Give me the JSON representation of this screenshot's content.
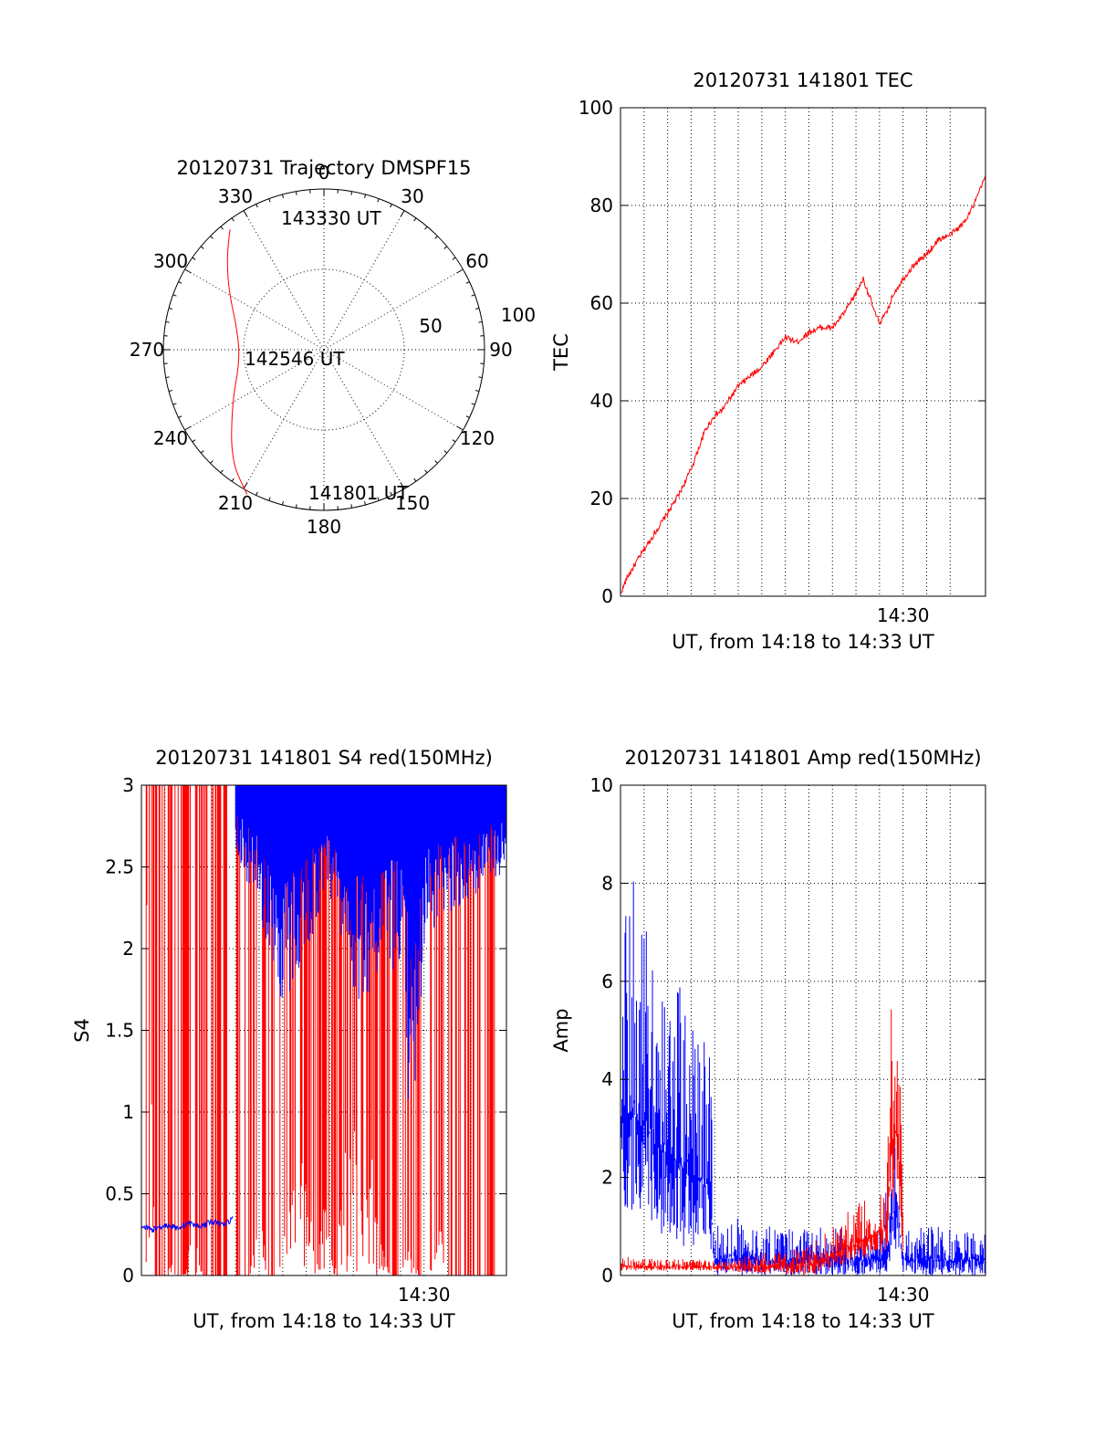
{
  "polar": {
    "title": "20120731 Trajectory DMSPF15",
    "azimuth_labels": [
      "0",
      "30",
      "60",
      "90",
      "120",
      "150",
      "180",
      "210",
      "240",
      "270",
      "300",
      "330"
    ],
    "radius_labels": [
      "50",
      "100"
    ],
    "point_labels": [
      "143330 UT",
      "142546 UT",
      "141801 UT"
    ],
    "trajectory_color": "#ff0000"
  },
  "chart_data": [
    {
      "type": "polar",
      "title": "20120731 Trajectory DMSPF15",
      "series": [
        {
          "color": "#ff0000",
          "points": [
            {
              "az": 208,
              "r": 102
            },
            {
              "az": 220,
              "r": 90
            },
            {
              "az": 240,
              "r": 66
            },
            {
              "az": 262,
              "r": 53
            },
            {
              "az": 282,
              "r": 55
            },
            {
              "az": 302,
              "r": 70
            },
            {
              "az": 314,
              "r": 84
            },
            {
              "az": 322,
              "r": 95
            }
          ]
        }
      ],
      "labels": [
        {
          "text": "143330 UT",
          "az": 326,
          "r": 100
        },
        {
          "text": "142546 UT",
          "az": 265,
          "r": 50
        },
        {
          "text": "141801 UT",
          "az": 208,
          "r": 102
        }
      ],
      "rlim": [
        0,
        100
      ]
    },
    {
      "type": "line",
      "title": "20120731 141801 TEC",
      "xlabel": "UT, from 14:18 to 14:33 UT",
      "ylabel": "TEC",
      "xlim": [
        0,
        15.5
      ],
      "ylim": [
        0,
        100
      ],
      "yticks": [
        "0",
        "20",
        "40",
        "60",
        "80",
        "100"
      ],
      "xtick_labels": [
        {
          "x": 12,
          "label": "14:30"
        }
      ],
      "grid": true,
      "series": [
        {
          "color": "#ff0000",
          "x": [
            0,
            0.3,
            0.8,
            1.2,
            2,
            2.5,
            3,
            3.3,
            3.6,
            4,
            4.3,
            5,
            5.5,
            6,
            6.5,
            7,
            7.5,
            8,
            8.5,
            9,
            9.5,
            10,
            10.3,
            10.6,
            10.8,
            11,
            11.3,
            11.6,
            12,
            12.5,
            13,
            13.5,
            14,
            14.5,
            15,
            15.5
          ],
          "y": [
            0.5,
            4,
            8,
            11,
            17,
            21,
            26,
            30,
            34,
            37,
            38,
            43,
            45,
            47,
            50,
            53,
            52,
            54,
            55,
            55,
            58,
            62,
            65,
            61,
            58,
            56,
            58,
            62,
            65,
            68,
            70,
            73,
            74,
            76,
            80,
            86
          ]
        }
      ]
    },
    {
      "type": "line",
      "title": "20120731 141801 S4 red(150MHz)",
      "xlabel": "UT, from 14:18 to 14:33 UT",
      "ylabel": "S4",
      "xlim": [
        0,
        15.5
      ],
      "ylim": [
        0,
        3
      ],
      "yticks": [
        "0",
        "0.5",
        "1",
        "1.5",
        "2",
        "2.5",
        "3"
      ],
      "xtick_labels": [
        {
          "x": 12,
          "label": "14:30"
        }
      ],
      "grid": true,
      "series": [
        {
          "color": "#ff0000",
          "note_spikes": "many vertical spikes between S4 0 and 3 from x=0.3 to x=15",
          "x": [
            0.2,
            0.6,
            1.0,
            1.4,
            1.8,
            2.2,
            2.6,
            3.0,
            3.4,
            3.8,
            4.2,
            4.6,
            5.0,
            5.4,
            5.8,
            6.2,
            6.6,
            7.0,
            7.4,
            7.8,
            8.2,
            8.6,
            9.0,
            9.4,
            9.8,
            10.2,
            10.6,
            11.0,
            11.4,
            11.8,
            12.2,
            12.6,
            13.0,
            13.4,
            13.8,
            14.2,
            14.6,
            15.0
          ],
          "y_low": [
            2.9,
            0,
            0,
            0.1,
            0,
            0.3,
            0,
            0,
            0,
            0,
            0,
            0,
            0.5,
            0,
            0,
            0.4,
            0.6,
            0.8,
            0,
            0.5,
            0,
            0.9,
            1.0,
            0.3,
            0.8,
            0.2,
            0,
            0,
            0.2,
            0,
            0,
            0.4,
            0,
            0,
            0,
            0,
            0,
            0
          ],
          "y_high": [
            3,
            3,
            3,
            3,
            3,
            3,
            3,
            3,
            3,
            3,
            3,
            3,
            3,
            3,
            3,
            3,
            3,
            3,
            3,
            3,
            3,
            3,
            3,
            3,
            3,
            3,
            3,
            3,
            3,
            3,
            3,
            3,
            3,
            3,
            3,
            3,
            3,
            3
          ]
        },
        {
          "color": "#0000ff",
          "x": [
            0,
            0.5,
            1,
            1.5,
            2,
            2.5,
            3,
            3.5,
            3.9
          ],
          "y": [
            0.3,
            0.28,
            0.31,
            0.29,
            0.32,
            0.3,
            0.33,
            0.31,
            0.35
          ]
        },
        {
          "color": "#0000ff",
          "note_spikes": "dense blue spikes from S4 ~1.5 to 3 between x=4 and x=15.5",
          "x": [
            4,
            5,
            6,
            7,
            8,
            9,
            10,
            11,
            11.5,
            12,
            13,
            14,
            15,
            15.5
          ],
          "y_low": [
            2.6,
            2.2,
            1.6,
            2.0,
            2.3,
            1.6,
            1.8,
            1.9,
            0.6,
            2.0,
            2.2,
            2.3,
            2.4,
            2.5
          ],
          "y_high": [
            3,
            3,
            3,
            3,
            3,
            3,
            3,
            3,
            3,
            3,
            3,
            3,
            3,
            3
          ]
        }
      ]
    },
    {
      "type": "line",
      "title": "20120731 141801 Amp red(150MHz)",
      "xlabel": "UT, from 14:18 to 14:33 UT",
      "ylabel": "Amp",
      "xlim": [
        0,
        15.5
      ],
      "ylim": [
        0,
        10
      ],
      "yticks": [
        "0",
        "2",
        "4",
        "6",
        "8",
        "10"
      ],
      "xtick_labels": [
        {
          "x": 12,
          "label": "14:30"
        }
      ],
      "grid": true,
      "series": [
        {
          "color": "#0000ff",
          "x": [
            0,
            0.5,
            1,
            1.5,
            2,
            2.5,
            3,
            3.5,
            3.8,
            4,
            5,
            6,
            7,
            8,
            9,
            10,
            11,
            11.4,
            11.6,
            11.8,
            12,
            12.5,
            13,
            14,
            15,
            15.5
          ],
          "y_low": [
            1.5,
            1.2,
            1.0,
            0.8,
            0.8,
            0.6,
            0.6,
            0.6,
            0.6,
            0,
            0,
            0,
            0,
            0,
            0,
            0,
            0,
            0,
            0.5,
            0.5,
            0,
            0,
            0,
            0,
            0,
            0
          ],
          "y_high": [
            7.2,
            8.4,
            7.5,
            6.8,
            6.5,
            6.0,
            5.5,
            4.8,
            4.6,
            1.0,
            1.2,
            1.0,
            1.0,
            1.1,
            1.0,
            0.9,
            1.0,
            2.2,
            3.0,
            2.5,
            1.0,
            1.0,
            1.0,
            1.0,
            1.0,
            0.9
          ]
        },
        {
          "color": "#ff0000",
          "x": [
            0,
            1,
            2,
            3,
            3.8,
            8,
            11.3,
            11.5,
            11.7,
            11.9,
            12.0
          ],
          "y_low": [
            0.1,
            0.1,
            0.1,
            0.1,
            0.1,
            0,
            0.5,
            1.0,
            2.0,
            1.0,
            0.2
          ],
          "y_high": [
            0.4,
            0.35,
            0.35,
            0.35,
            0.3,
            0.6,
            2.0,
            5.8,
            5.2,
            4.5,
            0.5
          ]
        }
      ]
    }
  ]
}
